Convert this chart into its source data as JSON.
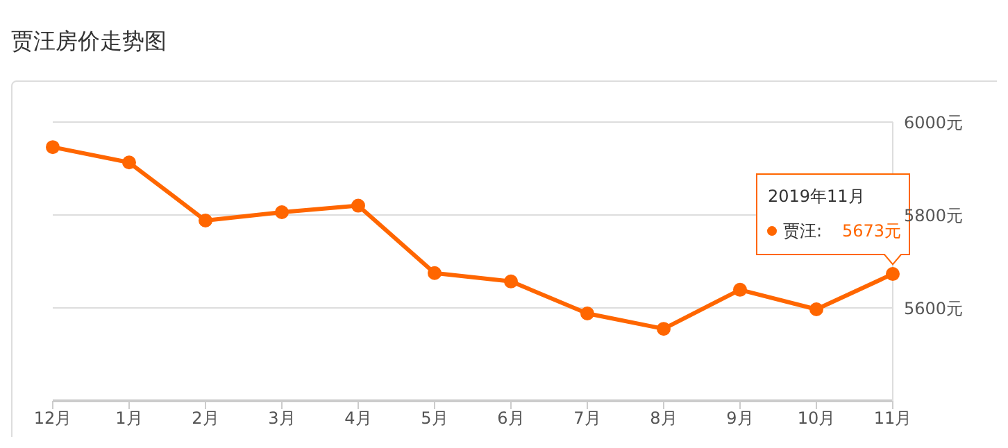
{
  "chart_data": {
    "type": "line",
    "title": "贾汪房价走势图",
    "categories": [
      "12月",
      "1月",
      "2月",
      "3月",
      "4月",
      "5月",
      "6月",
      "7月",
      "8月",
      "9月",
      "10月",
      "11月"
    ],
    "series": [
      {
        "color": "#ff6600",
        "values": [
          5946,
          5913,
          5788,
          5806,
          5820,
          5675,
          5657,
          5588,
          5555,
          5639,
          5597,
          5673
        ],
        "value_labels": [
          null,
          null,
          null,
          null,
          null,
          null,
          null,
          null,
          null,
          null,
          null,
          "5673元"
        ]
      }
    ],
    "ylim": [
      5400,
      6000
    ],
    "yticks": [
      {
        "value": 5600,
        "label": "5600元"
      },
      {
        "value": 5800,
        "label": "5800元"
      },
      {
        "value": 6000,
        "label": "6000元"
      }
    ],
    "grid": "y",
    "marker": "circle",
    "line_style": "solid",
    "annotations": [
      "2019年11月",
      "贾汪:"
    ]
  }
}
